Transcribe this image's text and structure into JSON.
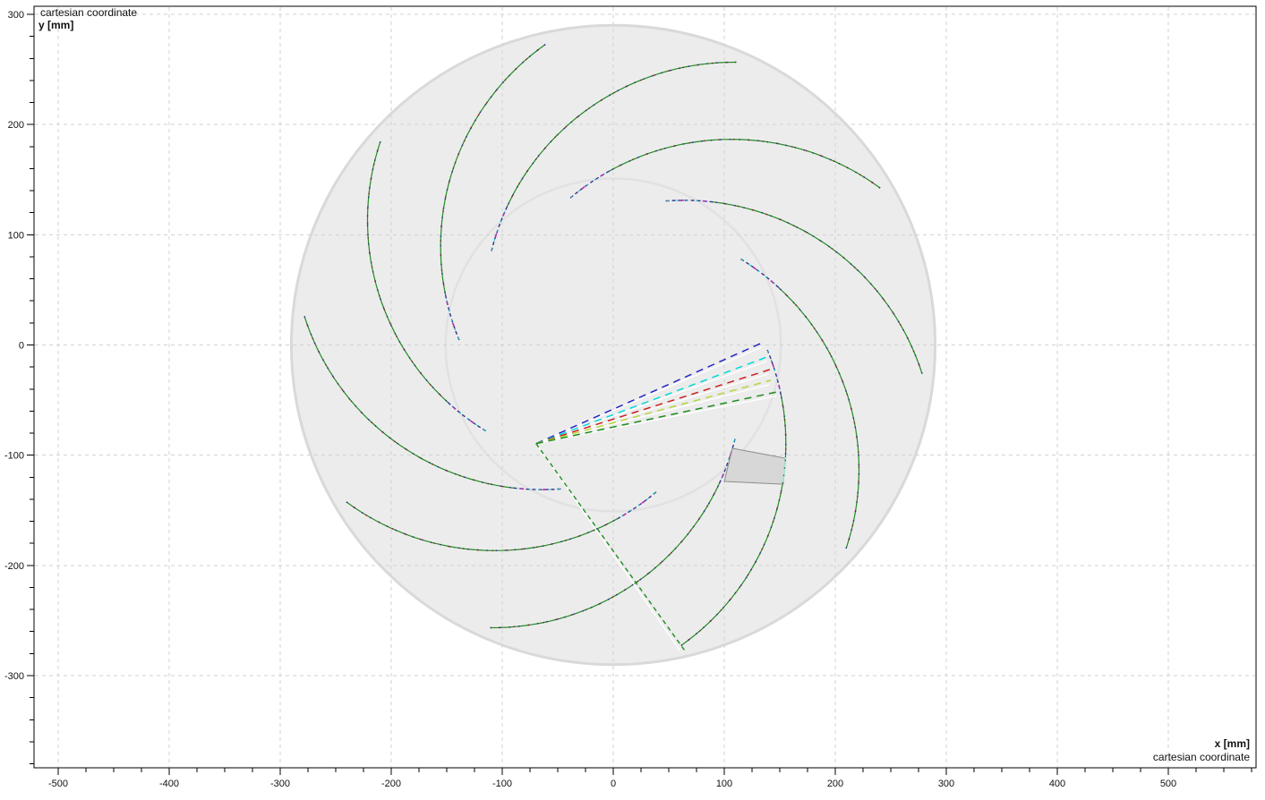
{
  "header": {
    "title_top": "cartesian coordinate",
    "y_axis_label": "y [mm]",
    "x_axis_label": "x [mm]",
    "title_bottom": "cartesian coordinate"
  },
  "chart_data": {
    "type": "line",
    "title": "cartesian coordinate",
    "xlabel": "x [mm]",
    "ylabel": "y [mm]",
    "xlim": [
      -521,
      579
    ],
    "ylim": [
      -384,
      307
    ],
    "grid": {
      "on": true,
      "step_mm": 100,
      "style": "dashed"
    },
    "legend": "none",
    "axes": {
      "x_major_ticks": [
        -500,
        -400,
        -300,
        -200,
        -100,
        0,
        100,
        200,
        300,
        400,
        500
      ],
      "x_tick_labels": [
        "-500",
        "-400",
        "-300",
        "-200",
        "-100",
        "0",
        "100",
        "200",
        "300",
        "400",
        "500"
      ],
      "x_minor_step": 25,
      "x_minor_range": [
        -500,
        575
      ],
      "y_major_ticks": [
        300,
        200,
        100,
        0,
        -100,
        -200,
        -300
      ],
      "y_tick_labels": [
        "300",
        "200",
        "100",
        "0",
        "-100",
        "-200",
        "-300"
      ],
      "y_minor_step": 20,
      "y_minor_range": [
        -380,
        300
      ]
    },
    "impeller": {
      "center_mm": [
        0,
        0
      ],
      "outer_radius_mm": 290,
      "inner_radius_mm": 151,
      "blade_count": 10,
      "blade_pitch_deg": 36,
      "blade_arc_center_mm": [
        -69.5,
        -89.5
      ],
      "blade_arc_radius_mm": 225,
      "blade_green_start_deg": -54.5,
      "blade_green_end_deg": 11.3,
      "blade_ext_end_deg": 22.2,
      "magenta_marker_angles_deg": [
        12.8,
        18.0
      ],
      "pale_segment_deg": [
        -9.3,
        -3.2
      ]
    },
    "construction_rays": [
      {
        "name": "ray-blue",
        "color": "#2323c8",
        "angle_deg": 24.2,
        "length_mm": 224
      },
      {
        "name": "ray-cyan",
        "color": "#00d9d9",
        "angle_deg": 20.7,
        "length_mm": 223
      },
      {
        "name": "ray-red",
        "color": "#cb2020",
        "angle_deg": 17.7,
        "length_mm": 221
      },
      {
        "name": "ray-yellowgreen",
        "color": "#b5d53a",
        "angle_deg": 15.2,
        "length_mm": 219
      },
      {
        "name": "ray-green",
        "color": "#1f8b1f",
        "angle_deg": 12.2,
        "length_mm": 223
      }
    ],
    "sector_ray": {
      "name": "ray-sector-green",
      "color": "#1f8b1f",
      "angle_deg": -54.5,
      "length_mm": 230
    },
    "cross_section_quad_mm": [
      [
        107.3,
        -93.8
      ],
      [
        154.9,
        -102.7
      ],
      [
        153.2,
        -126.3
      ],
      [
        100.0,
        -123.8
      ]
    ],
    "colors": {
      "background": "#ffffff",
      "disc_fill": "#ececec",
      "disc_edge": "#d9d9d9",
      "inner_circle": "#e1e1e1",
      "grid": "#d2d2d2",
      "frame": "#000000",
      "tick_text": "#111111",
      "blade_green": "#228b22",
      "blade_dots_navy": "#32328c",
      "blade_dots_red": "#8b2020",
      "blade_ext_navy": "#32328c",
      "blade_ext_cyan": "#00c8c8",
      "blade_ext_magenta": "#b030b0",
      "pale_segment": "#a0e8c8",
      "quad_fill": "#d7d7d7",
      "quad_edge": "#8c8c8c",
      "white_ray": "#ffffff"
    }
  }
}
